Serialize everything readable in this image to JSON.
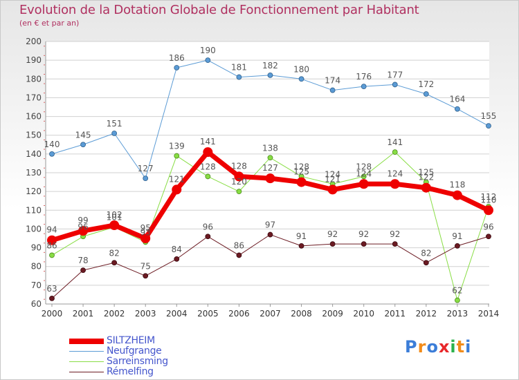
{
  "header": {
    "title": "Evolution de la Dotation Globale de Fonctionnement par Habitant",
    "subtitle": "(en € et par an)"
  },
  "brand": {
    "text": "Proxiti"
  },
  "chart_data": {
    "type": "line",
    "title": "Evolution de la Dotation Globale de Fonctionnement par Habitant",
    "subtitle": "(en € et par an)",
    "xlabel": "",
    "ylabel": "",
    "ylim": [
      60,
      200
    ],
    "yticks": [
      60,
      70,
      80,
      90,
      100,
      110,
      120,
      130,
      140,
      150,
      160,
      170,
      180,
      190,
      200
    ],
    "grid": "horizontal",
    "legend_position": "bottom-left",
    "categories": [
      "2000",
      "2001",
      "2002",
      "2003",
      "2004",
      "2005",
      "2006",
      "2007",
      "2008",
      "2009",
      "2010",
      "2011",
      "2012",
      "2013",
      "2014"
    ],
    "series": [
      {
        "name": "Neufgrange",
        "color": "#5b9bd5",
        "values": [
          140,
          145,
          151,
          127,
          186,
          190,
          181,
          182,
          180,
          174,
          176,
          177,
          172,
          164,
          155
        ]
      },
      {
        "name": "Sarreinsming",
        "color": "#88dd44",
        "values": [
          86,
          96,
          101,
          93,
          139,
          128,
          120,
          138,
          128,
          124,
          128,
          141,
          125,
          62,
          112
        ]
      },
      {
        "name": "Rémelfing",
        "color": "#6b1a22",
        "values": [
          63,
          78,
          82,
          75,
          84,
          96,
          86,
          97,
          91,
          92,
          92,
          92,
          82,
          91,
          96
        ]
      },
      {
        "name": "SILTZHEIM",
        "color": "#ee0000",
        "values": [
          94,
          99,
          102,
          95,
          121,
          141,
          128,
          127,
          125,
          121,
          124,
          124,
          122,
          118,
          110
        ]
      }
    ],
    "legend": [
      "SILTZHEIM",
      "Neufgrange",
      "Sarreinsming",
      "Rémelfing"
    ]
  }
}
